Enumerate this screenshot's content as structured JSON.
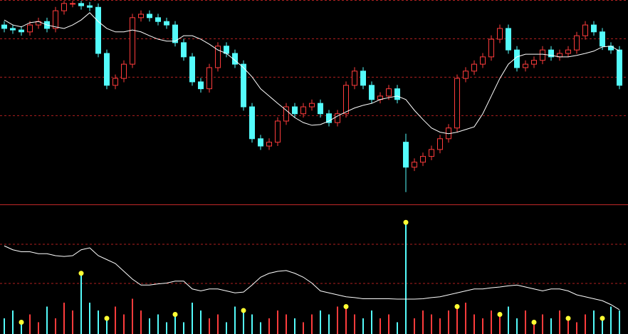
{
  "chart_data": {
    "type": "candlestick",
    "up_color": "#ff3c3c",
    "down_color": "#54fcfc",
    "ma_color": "#ffffff",
    "grid_color": "#b02020",
    "marker_color": "#ffff33",
    "ylim": [
      47,
      100
    ],
    "yticks": [
      100,
      90,
      80,
      70
    ],
    "grid": true,
    "open": [
      93.5,
      92.6,
      92.2,
      91.7,
      93.5,
      94.4,
      92.6,
      97.2,
      99.1,
      99.1,
      98.5,
      98.1,
      86.1,
      77.8,
      79.6,
      83.3,
      95.4,
      96.3,
      95.4,
      94.4,
      93.5,
      88.9,
      85.2,
      78.7,
      76.9,
      82.4,
      88.0,
      86.1,
      83.3,
      72.2,
      63.9,
      62.0,
      63.0,
      68.5,
      72.2,
      70.4,
      72.2,
      73.1,
      70.4,
      68.1,
      70.4,
      77.8,
      81.5,
      77.8,
      74.1,
      75.0,
      76.9,
      63.0,
      56.5,
      57.8,
      59.3,
      61.1,
      63.9,
      66.7,
      79.6,
      81.5,
      83.3,
      85.2,
      89.8,
      92.6,
      87.0,
      82.4,
      83.3,
      84.3,
      87.0,
      85.2,
      86.1,
      87.0,
      90.7,
      93.5,
      91.7,
      88.0,
      87.0
    ],
    "high": [
      94.5,
      93.6,
      93.2,
      94.5,
      95.4,
      95.4,
      98.2,
      99.8,
      99.8,
      99.8,
      99.5,
      99.1,
      87.1,
      80.6,
      84.3,
      96.4,
      97.3,
      97.3,
      96.4,
      95.4,
      94.5,
      89.9,
      86.2,
      79.7,
      83.4,
      89.0,
      89.0,
      87.1,
      84.3,
      73.2,
      64.9,
      64.0,
      69.5,
      73.2,
      73.2,
      73.2,
      74.1,
      74.1,
      71.4,
      71.4,
      78.8,
      82.5,
      82.5,
      78.8,
      76.0,
      77.9,
      77.9,
      65.2,
      58.8,
      60.3,
      62.1,
      64.9,
      67.7,
      80.6,
      82.5,
      84.3,
      86.2,
      90.8,
      93.6,
      93.6,
      88.0,
      84.3,
      85.3,
      88.0,
      88.0,
      87.1,
      88.0,
      91.7,
      94.5,
      94.5,
      92.7,
      89.0,
      88.0
    ],
    "low": [
      91.6,
      91.2,
      90.7,
      90.7,
      92.5,
      91.6,
      91.6,
      96.2,
      98.1,
      97.5,
      97.1,
      85.1,
      76.8,
      76.8,
      78.6,
      82.3,
      94.4,
      94.4,
      93.4,
      92.5,
      87.9,
      84.2,
      77.7,
      75.9,
      75.9,
      81.4,
      85.1,
      82.3,
      71.2,
      62.9,
      61.0,
      61.0,
      62.0,
      67.5,
      69.4,
      69.4,
      71.2,
      69.4,
      67.1,
      67.1,
      69.4,
      76.8,
      76.8,
      73.1,
      73.1,
      74.0,
      73.1,
      50.0,
      55.5,
      56.8,
      58.3,
      60.1,
      62.9,
      65.7,
      78.6,
      80.5,
      82.3,
      84.2,
      88.8,
      86.0,
      81.4,
      81.4,
      82.3,
      83.3,
      84.2,
      84.2,
      85.1,
      86.0,
      89.7,
      90.7,
      87.0,
      86.0,
      76.8
    ],
    "close": [
      92.6,
      92.2,
      91.7,
      93.5,
      94.4,
      92.6,
      97.2,
      99.1,
      99.1,
      98.5,
      98.1,
      86.1,
      77.8,
      79.6,
      83.3,
      95.4,
      96.3,
      95.4,
      94.4,
      93.5,
      88.9,
      85.2,
      78.7,
      76.9,
      82.4,
      88.0,
      86.1,
      83.3,
      72.2,
      63.9,
      62.0,
      63.0,
      68.5,
      72.2,
      70.4,
      72.2,
      73.1,
      70.4,
      68.1,
      70.4,
      77.8,
      81.5,
      77.8,
      74.1,
      75.0,
      76.9,
      74.1,
      56.5,
      57.8,
      59.3,
      61.1,
      63.9,
      66.7,
      79.6,
      81.5,
      83.3,
      85.2,
      89.8,
      92.6,
      87.0,
      82.4,
      83.3,
      84.3,
      87.0,
      85.2,
      86.1,
      87.0,
      90.7,
      93.5,
      91.7,
      88.0,
      87.0,
      77.8
    ],
    "ma": [
      94.8,
      93.5,
      93.0,
      94.1,
      94.4,
      93.5,
      93.0,
      92.6,
      93.5,
      94.8,
      96.7,
      94.4,
      92.6,
      91.7,
      91.7,
      92.2,
      91.7,
      90.7,
      89.8,
      89.3,
      89.3,
      90.7,
      90.7,
      89.8,
      88.5,
      87.0,
      86.1,
      84.3,
      82.4,
      80.0,
      76.9,
      75.0,
      73.1,
      71.3,
      69.4,
      68.1,
      67.4,
      67.6,
      68.5,
      69.8,
      70.9,
      71.9,
      72.6,
      73.1,
      74.1,
      74.6,
      75.0,
      74.1,
      71.3,
      68.9,
      66.7,
      65.6,
      65.2,
      65.6,
      66.3,
      67.0,
      70.4,
      75.0,
      79.6,
      83.3,
      85.2,
      85.9,
      85.9,
      85.9,
      85.6,
      85.2,
      85.2,
      85.6,
      86.1,
      86.7,
      87.8,
      88.0,
      86.7
    ],
    "volume_ylim": [
      0,
      32
    ],
    "volume_yticks": [
      23,
      13
    ],
    "volume": [
      4,
      6,
      3,
      5,
      3,
      7,
      4,
      8,
      6,
      15.5,
      8,
      6,
      4,
      7,
      5,
      9,
      6,
      4,
      5,
      3,
      5,
      3,
      8,
      6,
      4,
      5,
      3,
      7,
      6,
      5,
      3,
      4,
      6,
      5,
      4,
      3,
      5,
      6,
      5,
      7,
      7,
      5,
      4,
      6,
      4,
      5,
      3,
      28.5,
      4,
      6,
      5,
      4,
      6,
      7,
      8,
      5,
      4,
      6,
      5,
      7,
      4,
      6,
      3,
      5,
      4,
      6,
      4,
      3,
      5,
      6,
      4,
      7,
      6
    ],
    "volume_ma": [
      22.5,
      21.5,
      21.0,
      21.0,
      20.5,
      20.5,
      20.0,
      19.8,
      20.0,
      21.5,
      22.0,
      20.0,
      19.0,
      18.0,
      16.0,
      14.0,
      12.5,
      12.5,
      12.8,
      13.0,
      13.5,
      13.5,
      11.5,
      11.0,
      11.5,
      11.5,
      11.0,
      10.5,
      10.7,
      12.5,
      14.5,
      15.5,
      16.0,
      16.2,
      15.5,
      14.5,
      13.0,
      11.0,
      10.5,
      10.0,
      9.5,
      9.3,
      9.0,
      9.0,
      9.0,
      9.0,
      8.9,
      8.9,
      8.9,
      9.0,
      9.3,
      9.5,
      10.0,
      10.5,
      11.0,
      11.5,
      11.5,
      11.8,
      12.0,
      12.3,
      12.5,
      12.0,
      11.5,
      11.0,
      11.5,
      11.5,
      11.0,
      10.0,
      9.5,
      9.0,
      8.5,
      7.5,
      6.2
    ],
    "markers": [
      2,
      9,
      12,
      20,
      28,
      40,
      47,
      53,
      58,
      62,
      66,
      70
    ]
  }
}
